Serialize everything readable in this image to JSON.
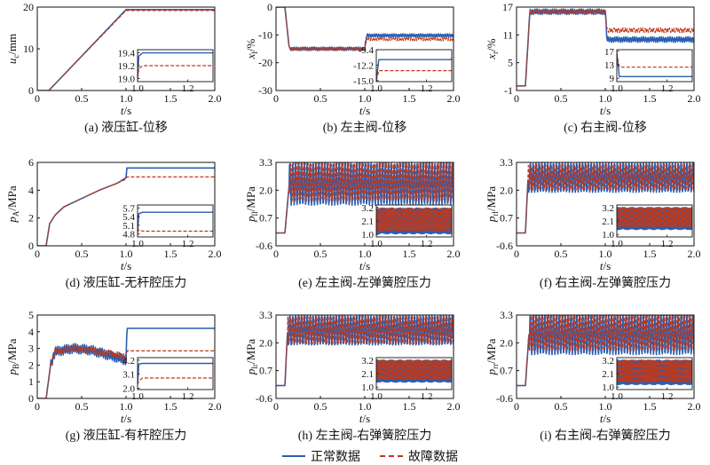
{
  "colors": {
    "normal": "#2a5db0",
    "fault": "#c0391b",
    "axis": "#111111"
  },
  "legend": {
    "normal": "正常数据",
    "fault": "故障数据"
  },
  "chart_data": [
    {
      "type": "line",
      "caption": "(a) 液压缸-位移",
      "ylabel_main": "u",
      "ylabel_sub": "c",
      "ylabel_unit": "/mm",
      "xlabel": "t/s",
      "xlim": [
        0,
        2
      ],
      "ylim": [
        0,
        20
      ],
      "xticks": [
        "0",
        "0.5",
        "1.0",
        "1.5",
        "2.0"
      ],
      "yticks": [
        0,
        10,
        20
      ],
      "ytick_labels": [
        "0",
        "10",
        "20"
      ],
      "series": [
        {
          "name": "正常数据",
          "x": [
            0,
            0.13,
            1.0,
            2.0
          ],
          "y": [
            0,
            0,
            19.4,
            19.4
          ]
        },
        {
          "name": "故障数据",
          "x": [
            0,
            0.13,
            1.0,
            2.0
          ],
          "y": [
            0,
            0,
            19.2,
            19.2
          ]
        }
      ],
      "inset": {
        "xlim": [
          1.0,
          1.3
        ],
        "ylim": [
          18.95,
          19.45
        ],
        "xticks": [
          "1.0",
          "1.2"
        ],
        "yticks": [
          "19.4",
          "19.2",
          "19.0"
        ],
        "ytick_values": [
          19.4,
          19.2,
          19.0
        ],
        "series": [
          {
            "x": [
              1.0,
              1.005,
              1.02,
              1.3
            ],
            "y": [
              19.0,
              19.35,
              19.4,
              19.4
            ]
          },
          {
            "x": [
              1.0,
              1.005,
              1.02,
              1.3
            ],
            "y": [
              19.0,
              19.15,
              19.2,
              19.2
            ]
          }
        ]
      }
    },
    {
      "type": "line",
      "caption": "(b) 左主阀-位移",
      "ylabel_main": "x",
      "ylabel_sub": "l",
      "ylabel_unit": "/%",
      "xlabel": "t/s",
      "xlim": [
        0,
        2
      ],
      "ylim": [
        -30,
        0
      ],
      "xticks": [
        "0",
        "0.5",
        "1.0",
        "1.5",
        "2.0"
      ],
      "yticks": [
        0,
        -10,
        -20,
        -30
      ],
      "ytick_labels": [
        "0",
        "-10",
        "-20",
        "-30"
      ],
      "series": [
        {
          "name": "正常数据",
          "osc": true,
          "x": [
            0,
            0.1,
            0.15,
            1.0,
            1.02,
            2.0
          ],
          "y": [
            0,
            0,
            -15,
            -15,
            -10.2,
            -10.2
          ],
          "amp": 0.6
        },
        {
          "name": "故障数据",
          "osc": true,
          "x": [
            0,
            0.1,
            0.15,
            1.0,
            1.02,
            2.0
          ],
          "y": [
            0,
            0,
            -15,
            -15,
            -11.5,
            -11.5
          ],
          "amp": 0.6
        }
      ],
      "inset": {
        "xlim": [
          1.0,
          1.3
        ],
        "ylim": [
          -15.2,
          -9.4
        ],
        "xticks": [
          "1.0",
          "1.2"
        ],
        "yticks": [
          "-9.4",
          "-12.2",
          "-15.0"
        ],
        "ytick_values": [
          -9.4,
          -12.2,
          -15.0
        ],
        "series": [
          {
            "osc": true,
            "x": [
              1.0,
              1.01,
              1.3
            ],
            "y": [
              -15.0,
              -11.2,
              -11.2
            ],
            "amp": 0.6
          },
          {
            "osc": true,
            "x": [
              1.0,
              1.01,
              1.3
            ],
            "y": [
              -15.0,
              -13.2,
              -13.2
            ],
            "amp": 0.5
          }
        ]
      }
    },
    {
      "type": "line",
      "caption": "(c) 右主阀-位移",
      "ylabel_main": "x",
      "ylabel_sub": "r",
      "ylabel_unit": "/%",
      "xlabel": "t/s",
      "xlim": [
        0,
        2
      ],
      "ylim": [
        -1,
        17
      ],
      "xticks": [
        "0",
        "0.5",
        "1.0",
        "1.5",
        "2.0"
      ],
      "yticks": [
        17,
        11,
        5,
        -1
      ],
      "ytick_labels": [
        "17",
        "11",
        "5",
        "-1"
      ],
      "series": [
        {
          "name": "正常数据",
          "osc": true,
          "x": [
            0,
            0.1,
            0.15,
            1.0,
            1.02,
            2.0
          ],
          "y": [
            0,
            0,
            16,
            16,
            10,
            10
          ],
          "amp": 0.6
        },
        {
          "name": "故障数据",
          "osc": true,
          "x": [
            0,
            0.1,
            0.15,
            1.0,
            1.02,
            2.0
          ],
          "y": [
            0,
            0,
            16,
            16,
            12,
            12
          ],
          "amp": 0.5
        }
      ],
      "inset": {
        "xlim": [
          1.0,
          1.3
        ],
        "ylim": [
          8,
          17.5
        ],
        "xticks": [
          "1.0",
          "1.2"
        ],
        "yticks": [
          "17",
          "13",
          "9"
        ],
        "ytick_values": [
          17,
          13,
          9
        ],
        "series": [
          {
            "osc": true,
            "x": [
              1.0,
              1.01,
              1.3
            ],
            "y": [
              16.5,
              9.5,
              9.5
            ],
            "amp": 0.8
          },
          {
            "osc": true,
            "x": [
              1.0,
              1.01,
              1.3
            ],
            "y": [
              16.5,
              12.3,
              12.3
            ],
            "amp": 0.6
          }
        ]
      }
    },
    {
      "type": "line",
      "caption": "(d) 液压缸-无杆腔压力",
      "ylabel_main": "p",
      "ylabel_sub": "A",
      "ylabel_unit": "/MPa",
      "xlabel": "t/s",
      "xlim": [
        0,
        2
      ],
      "ylim": [
        0,
        6
      ],
      "xticks": [
        "0",
        "0.5",
        "1.0",
        "1.5",
        "2.0"
      ],
      "yticks": [
        0,
        2,
        4,
        6
      ],
      "ytick_labels": [
        "0",
        "2",
        "4",
        "6"
      ],
      "series": [
        {
          "name": "正常数据",
          "x": [
            0,
            0.1,
            0.14,
            0.2,
            0.3,
            0.5,
            0.7,
            0.9,
            1.0,
            1.01,
            2.0
          ],
          "y": [
            0,
            0,
            1.6,
            2.2,
            2.8,
            3.4,
            4.0,
            4.5,
            4.9,
            5.6,
            5.6
          ],
          "amp": 0.1
        },
        {
          "name": "故障数据",
          "x": [
            0,
            0.1,
            0.14,
            0.2,
            0.3,
            0.5,
            0.7,
            0.9,
            1.0,
            1.01,
            2.0
          ],
          "y": [
            0,
            0,
            1.6,
            2.2,
            2.8,
            3.4,
            4.0,
            4.5,
            4.8,
            4.95,
            4.95
          ],
          "amp": 0.1
        }
      ],
      "inset": {
        "xlim": [
          1.0,
          1.3
        ],
        "ylim": [
          4.7,
          5.8
        ],
        "xticks": [
          "1.0",
          "1.2"
        ],
        "yticks": [
          "5.7",
          "5.4",
          "5.1",
          "4.8"
        ],
        "ytick_values": [
          5.7,
          5.4,
          5.1,
          4.8
        ],
        "series": [
          {
            "x": [
              1.0,
              1.005,
              1.02,
              1.3
            ],
            "y": [
              4.85,
              5.5,
              5.55,
              5.55
            ]
          },
          {
            "x": [
              1.0,
              1.005,
              1.02,
              1.3
            ],
            "y": [
              4.85,
              4.95,
              4.9,
              4.9
            ]
          }
        ]
      }
    },
    {
      "type": "line",
      "caption": "(e) 左主阀-左弹簧腔压力",
      "ylabel_main": "p",
      "ylabel_sub": "ll",
      "ylabel_unit": "/MPa",
      "xlabel": "t/s",
      "xlim": [
        0,
        2
      ],
      "ylim": [
        -0.6,
        3.3
      ],
      "xticks": [
        "0",
        "0.5",
        "1.0",
        "1.5",
        "2.0"
      ],
      "yticks": [
        3.3,
        2.0,
        0.7,
        -0.6
      ],
      "ytick_labels": [
        "3.3",
        "2.0",
        "0.7",
        "-0.6"
      ],
      "series": [
        {
          "name": "正常数据",
          "osc": true,
          "dense": true,
          "x": [
            0,
            0.1,
            0.15,
            2.0
          ],
          "y": [
            0,
            0,
            2.3,
            2.3
          ],
          "amp": 1.0
        },
        {
          "name": "故障数据",
          "osc": true,
          "dense": true,
          "x": [
            0,
            0.1,
            0.15,
            2.0
          ],
          "y": [
            0,
            0,
            2.4,
            2.4
          ],
          "amp": 0.9
        }
      ],
      "inset": {
        "xlim": [
          1.0,
          1.3
        ],
        "ylim": [
          0.8,
          3.4
        ],
        "xticks": [
          "1.0",
          "1.2"
        ],
        "yticks": [
          "3.2",
          "2.1",
          "1.0"
        ],
        "ytick_values": [
          3.2,
          2.1,
          1.0
        ],
        "series": [
          {
            "osc": true,
            "dense": true,
            "x": [
              1.0,
              1.3
            ],
            "y": [
              2.1,
              2.1
            ],
            "amp": 1.05
          },
          {
            "osc": true,
            "dense": true,
            "x": [
              1.0,
              1.3
            ],
            "y": [
              2.2,
              2.2
            ],
            "amp": 0.95
          }
        ]
      }
    },
    {
      "type": "line",
      "caption": "(f) 右主阀-左弹簧腔压力",
      "ylabel_main": "p",
      "ylabel_sub": "rl",
      "ylabel_unit": "/MPa",
      "xlabel": "t/s",
      "xlim": [
        0,
        2
      ],
      "ylim": [
        -0.6,
        3.3
      ],
      "xticks": [
        "0",
        "0.5",
        "1.0",
        "1.5",
        "2.0"
      ],
      "yticks": [
        3.3,
        2.0,
        0.7,
        -0.6
      ],
      "ytick_labels": [
        "3.3",
        "2.0",
        "0.7",
        "-0.6"
      ],
      "series": [
        {
          "name": "正常数据",
          "osc": true,
          "dense": true,
          "x": [
            0,
            0.1,
            0.13,
            2.0
          ],
          "y": [
            0,
            0,
            2.6,
            2.6
          ],
          "amp": 0.7
        },
        {
          "name": "故障数据",
          "osc": true,
          "dense": true,
          "x": [
            0,
            0.1,
            0.13,
            2.0
          ],
          "y": [
            0,
            0,
            2.6,
            2.6
          ],
          "amp": 0.6
        }
      ],
      "inset": {
        "xlim": [
          1.0,
          1.3
        ],
        "ylim": [
          0.8,
          3.4
        ],
        "xticks": [
          "1.0",
          "1.2"
        ],
        "yticks": [
          "3.2",
          "2.1",
          "1.0"
        ],
        "ytick_values": [
          3.2,
          2.1,
          1.0
        ],
        "series": [
          {
            "osc": true,
            "dense": true,
            "x": [
              1.0,
              1.3
            ],
            "y": [
              2.3,
              2.3
            ],
            "amp": 0.9
          },
          {
            "osc": true,
            "dense": true,
            "x": [
              1.0,
              1.3
            ],
            "y": [
              2.4,
              2.4
            ],
            "amp": 0.8
          }
        ]
      }
    },
    {
      "type": "line",
      "caption": "(g) 液压缸-有杆腔压力",
      "ylabel_main": "p",
      "ylabel_sub": "B",
      "ylabel_unit": "/MPa",
      "xlabel": "t/s",
      "xlim": [
        0,
        2
      ],
      "ylim": [
        0,
        5
      ],
      "xticks": [
        "0",
        "0.5",
        "1.0",
        "1.5",
        "2.0"
      ],
      "yticks": [
        0,
        1,
        2,
        3,
        4,
        5
      ],
      "ytick_labels": [
        "0",
        "1",
        "2",
        "3",
        "4",
        "5"
      ],
      "series": [
        {
          "name": "正常数据",
          "osc": true,
          "x": [
            0,
            0.1,
            0.15,
            0.2,
            0.4,
            0.6,
            0.8,
            1.0,
            1.01,
            2.0
          ],
          "y": [
            0,
            0,
            2.0,
            2.8,
            3.0,
            2.9,
            2.6,
            2.3,
            4.2,
            4.2
          ],
          "amp": 0.3,
          "osc_until": 1.0
        },
        {
          "name": "故障数据",
          "osc": true,
          "x": [
            0,
            0.1,
            0.15,
            0.2,
            0.4,
            0.6,
            0.8,
            1.0,
            1.01,
            2.0
          ],
          "y": [
            0,
            0,
            2.0,
            2.8,
            3.0,
            2.9,
            2.7,
            2.5,
            2.85,
            2.85
          ],
          "amp": 0.2,
          "osc_until": 1.0
        }
      ],
      "inset": {
        "xlim": [
          1.0,
          1.3
        ],
        "ylim": [
          1.9,
          4.4
        ],
        "xticks": [
          "1.0",
          "1.2"
        ],
        "yticks": [
          "4.2",
          "3.1",
          "2.0"
        ],
        "ytick_values": [
          4.2,
          3.1,
          2.0
        ],
        "series": [
          {
            "x": [
              1.0,
              1.005,
              1.02,
              1.3
            ],
            "y": [
              2.3,
              3.9,
              3.95,
              3.95
            ]
          },
          {
            "x": [
              1.0,
              1.005,
              1.02,
              1.3
            ],
            "y": [
              2.3,
              2.6,
              2.8,
              2.8
            ]
          }
        ]
      }
    },
    {
      "type": "line",
      "caption": "(h) 左主阀-右弹簧腔压力",
      "ylabel_main": "p",
      "ylabel_sub": "lr",
      "ylabel_unit": "/MPa",
      "xlabel": "t/s",
      "xlim": [
        0,
        2
      ],
      "ylim": [
        -0.6,
        3.3
      ],
      "xticks": [
        "0",
        "0.5",
        "1.0",
        "1.5",
        "2.0"
      ],
      "yticks": [
        3.3,
        2.0,
        0.7,
        -0.6
      ],
      "ytick_labels": [
        "3.3",
        "2.0",
        "0.7",
        "-0.6"
      ],
      "series": [
        {
          "name": "正常数据",
          "osc": true,
          "dense": true,
          "x": [
            0,
            0.1,
            0.13,
            2.0
          ],
          "y": [
            0,
            0,
            2.6,
            2.6
          ],
          "amp": 0.7
        },
        {
          "name": "故障数据",
          "osc": true,
          "dense": true,
          "x": [
            0,
            0.1,
            0.13,
            2.0
          ],
          "y": [
            0,
            0,
            2.6,
            2.6
          ],
          "amp": 0.65
        }
      ],
      "inset": {
        "xlim": [
          1.0,
          1.3
        ],
        "ylim": [
          0.8,
          3.4
        ],
        "xticks": [
          "1.0",
          "1.2"
        ],
        "yticks": [
          "3.2",
          "2.1",
          "1.0"
        ],
        "ytick_values": [
          3.2,
          2.1,
          1.0
        ],
        "series": [
          {
            "osc": true,
            "dense": true,
            "x": [
              1.0,
              1.3
            ],
            "y": [
              2.3,
              2.3
            ],
            "amp": 0.9
          },
          {
            "osc": true,
            "dense": true,
            "x": [
              1.0,
              1.3
            ],
            "y": [
              2.4,
              2.4
            ],
            "amp": 0.8
          }
        ]
      }
    },
    {
      "type": "line",
      "caption": "(i) 右主阀-右弹簧腔压力",
      "ylabel_main": "p",
      "ylabel_sub": "rr",
      "ylabel_unit": "/MPa",
      "xlabel": "t/s",
      "xlim": [
        0,
        2
      ],
      "ylim": [
        -0.6,
        3.3
      ],
      "xticks": [
        "0",
        "0.5",
        "1.0",
        "1.5",
        "2.0"
      ],
      "yticks": [
        3.3,
        2.0,
        0.7,
        -0.6
      ],
      "ytick_labels": [
        "3.3",
        "2.0",
        "0.7",
        "-0.6"
      ],
      "series": [
        {
          "name": "正常数据",
          "osc": true,
          "dense": true,
          "x": [
            0,
            0.1,
            0.14,
            2.0
          ],
          "y": [
            0,
            0,
            2.4,
            2.4
          ],
          "amp": 0.95
        },
        {
          "name": "故障数据",
          "osc": true,
          "dense": true,
          "x": [
            0,
            0.1,
            0.14,
            2.0
          ],
          "y": [
            0,
            0,
            2.5,
            2.5
          ],
          "amp": 0.85
        }
      ],
      "inset": {
        "xlim": [
          1.0,
          1.3
        ],
        "ylim": [
          0.8,
          3.4
        ],
        "xticks": [
          "1.0",
          "1.2"
        ],
        "yticks": [
          "3.2",
          "2.1",
          "1.0"
        ],
        "ytick_values": [
          3.2,
          2.1,
          1.0
        ],
        "series": [
          {
            "osc": true,
            "dense": true,
            "x": [
              1.0,
              1.3
            ],
            "y": [
              2.2,
              2.2
            ],
            "amp": 1.0
          },
          {
            "osc": true,
            "dense": true,
            "x": [
              1.0,
              1.3
            ],
            "y": [
              2.3,
              2.3
            ],
            "amp": 0.9
          }
        ]
      }
    }
  ]
}
